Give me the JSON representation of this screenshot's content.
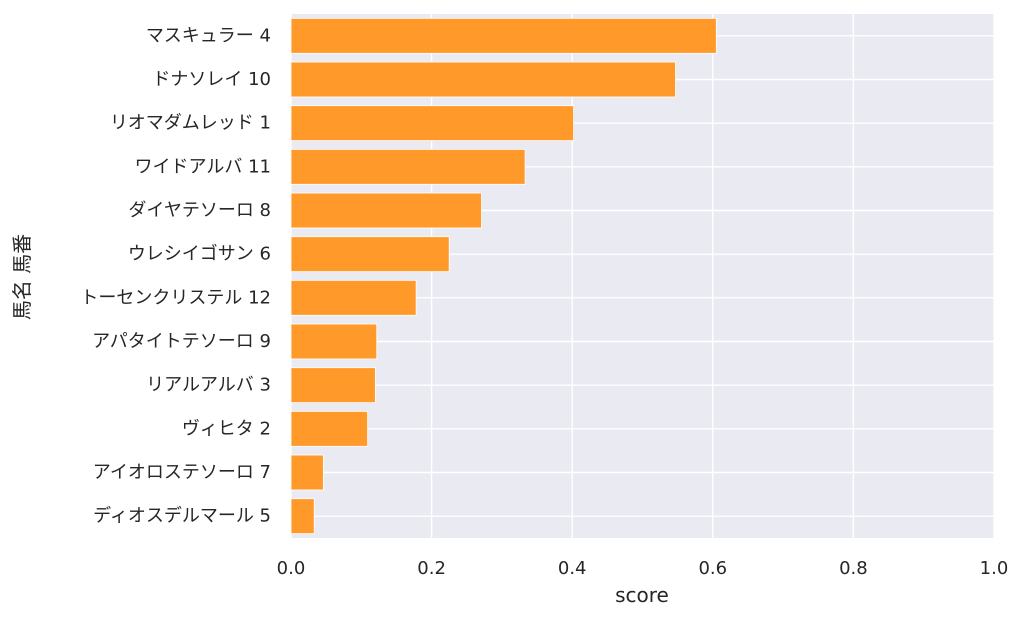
{
  "chart_data": {
    "type": "bar",
    "orientation": "horizontal",
    "categories": [
      "マスキュラー 4",
      "ドナソレイ 10",
      "リオマダムレッド 1",
      "ワイドアルバ 11",
      "ダイヤテソーロ 8",
      "ウレシイゴサン 6",
      "トーセンクリステル 12",
      "アパタイトテソーロ 9",
      "リアルアルバ 3",
      "ヴィヒタ 2",
      "アイオロステソーロ 7",
      "ディオスデルマール 5"
    ],
    "values": [
      0.605,
      0.547,
      0.402,
      0.333,
      0.271,
      0.225,
      0.178,
      0.122,
      0.12,
      0.109,
      0.046,
      0.033
    ],
    "xlabel": "score",
    "ylabel": "馬名 馬番",
    "xlim": [
      0,
      1.0
    ],
    "xticks": [
      "0.0",
      "0.2",
      "0.4",
      "0.6",
      "0.8",
      "1.0"
    ],
    "grid": true,
    "bar_color": "#ff9a2a",
    "background_color": "#eaeaf2"
  }
}
